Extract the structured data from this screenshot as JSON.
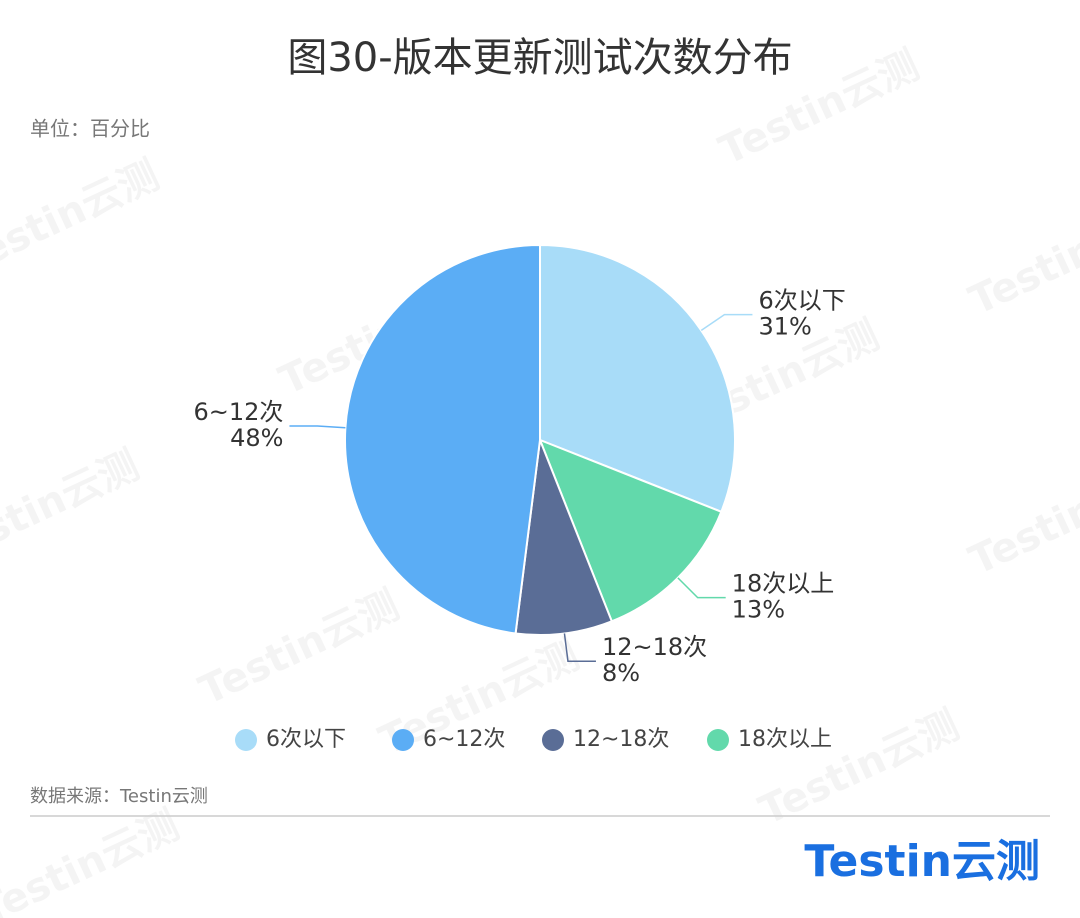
{
  "chart_data": {
    "type": "pie",
    "title": "图30-版本更新测试次数分布",
    "subtitle": "单位：百分比",
    "source": "数据来源：Testin云测",
    "logo": "Testin云测",
    "watermark": "Testin云测",
    "categories": [
      "6次以下",
      "18次以上",
      "12~18次",
      "6~12次"
    ],
    "values": [
      31,
      13,
      8,
      48
    ],
    "value_labels": [
      "31%",
      "13%",
      "8%",
      "48%"
    ],
    "colors": [
      "#a8dcf8",
      "#62d9ab",
      "#5a6d96",
      "#5badf5"
    ],
    "legend": [
      "6次以下",
      "6~12次",
      "12~18次",
      "18次以上"
    ]
  }
}
